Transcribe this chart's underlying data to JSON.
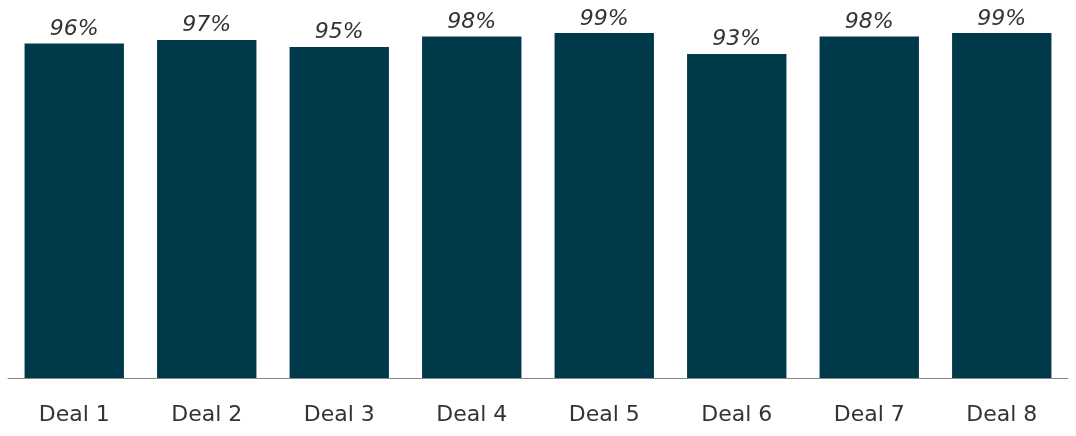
{
  "chart_data": {
    "type": "bar",
    "categories": [
      "Deal 1",
      "Deal 2",
      "Deal 3",
      "Deal 4",
      "Deal 5",
      "Deal 6",
      "Deal 7",
      "Deal 8"
    ],
    "values": [
      96,
      97,
      95,
      98,
      99,
      93,
      98,
      99
    ],
    "value_labels": [
      "96%",
      "97%",
      "95%",
      "98%",
      "99%",
      "93%",
      "98%",
      "99%"
    ],
    "color": "#003a4a"
  }
}
